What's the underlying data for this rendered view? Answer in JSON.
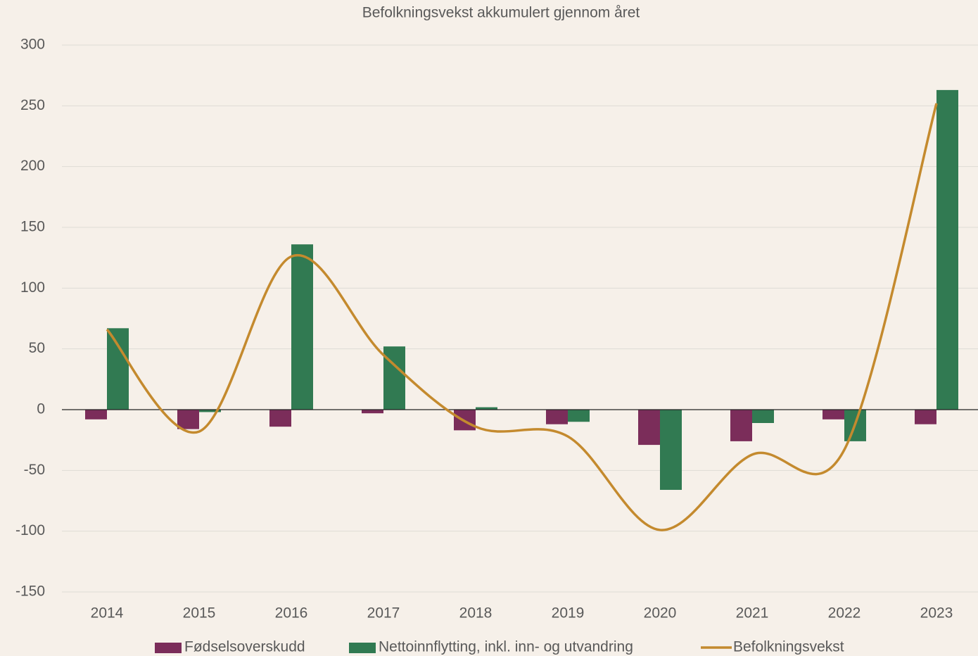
{
  "chart_data": {
    "type": "bar_line",
    "title": "Befolkningsvekst akkumulert gjennom året",
    "categories": [
      "2014",
      "2015",
      "2016",
      "2017",
      "2018",
      "2019",
      "2020",
      "2021",
      "2022",
      "2023"
    ],
    "series": [
      {
        "name": "Fødselsoverskudd",
        "type": "bar",
        "color": "#7b2d5a",
        "values": [
          -8,
          -16,
          -14,
          -3,
          -17,
          -12,
          -29,
          -26,
          -8,
          -12
        ]
      },
      {
        "name": "Nettoinnflytting, inkl. inn- og utvandring",
        "type": "bar",
        "color": "#317a52",
        "values": [
          67,
          -2,
          136,
          52,
          2,
          -10,
          -66,
          -11,
          -26,
          263
        ]
      },
      {
        "name": "Befolkningsvekst",
        "type": "line",
        "color": "#c48a2e",
        "values": [
          66,
          -18,
          126,
          45,
          -14,
          -22,
          -99,
          -37,
          -33,
          252
        ]
      }
    ],
    "ylim": [
      -150,
      300
    ],
    "yticks": [
      -150,
      -100,
      -50,
      0,
      50,
      100,
      150,
      200,
      250,
      300
    ],
    "grid": true
  }
}
